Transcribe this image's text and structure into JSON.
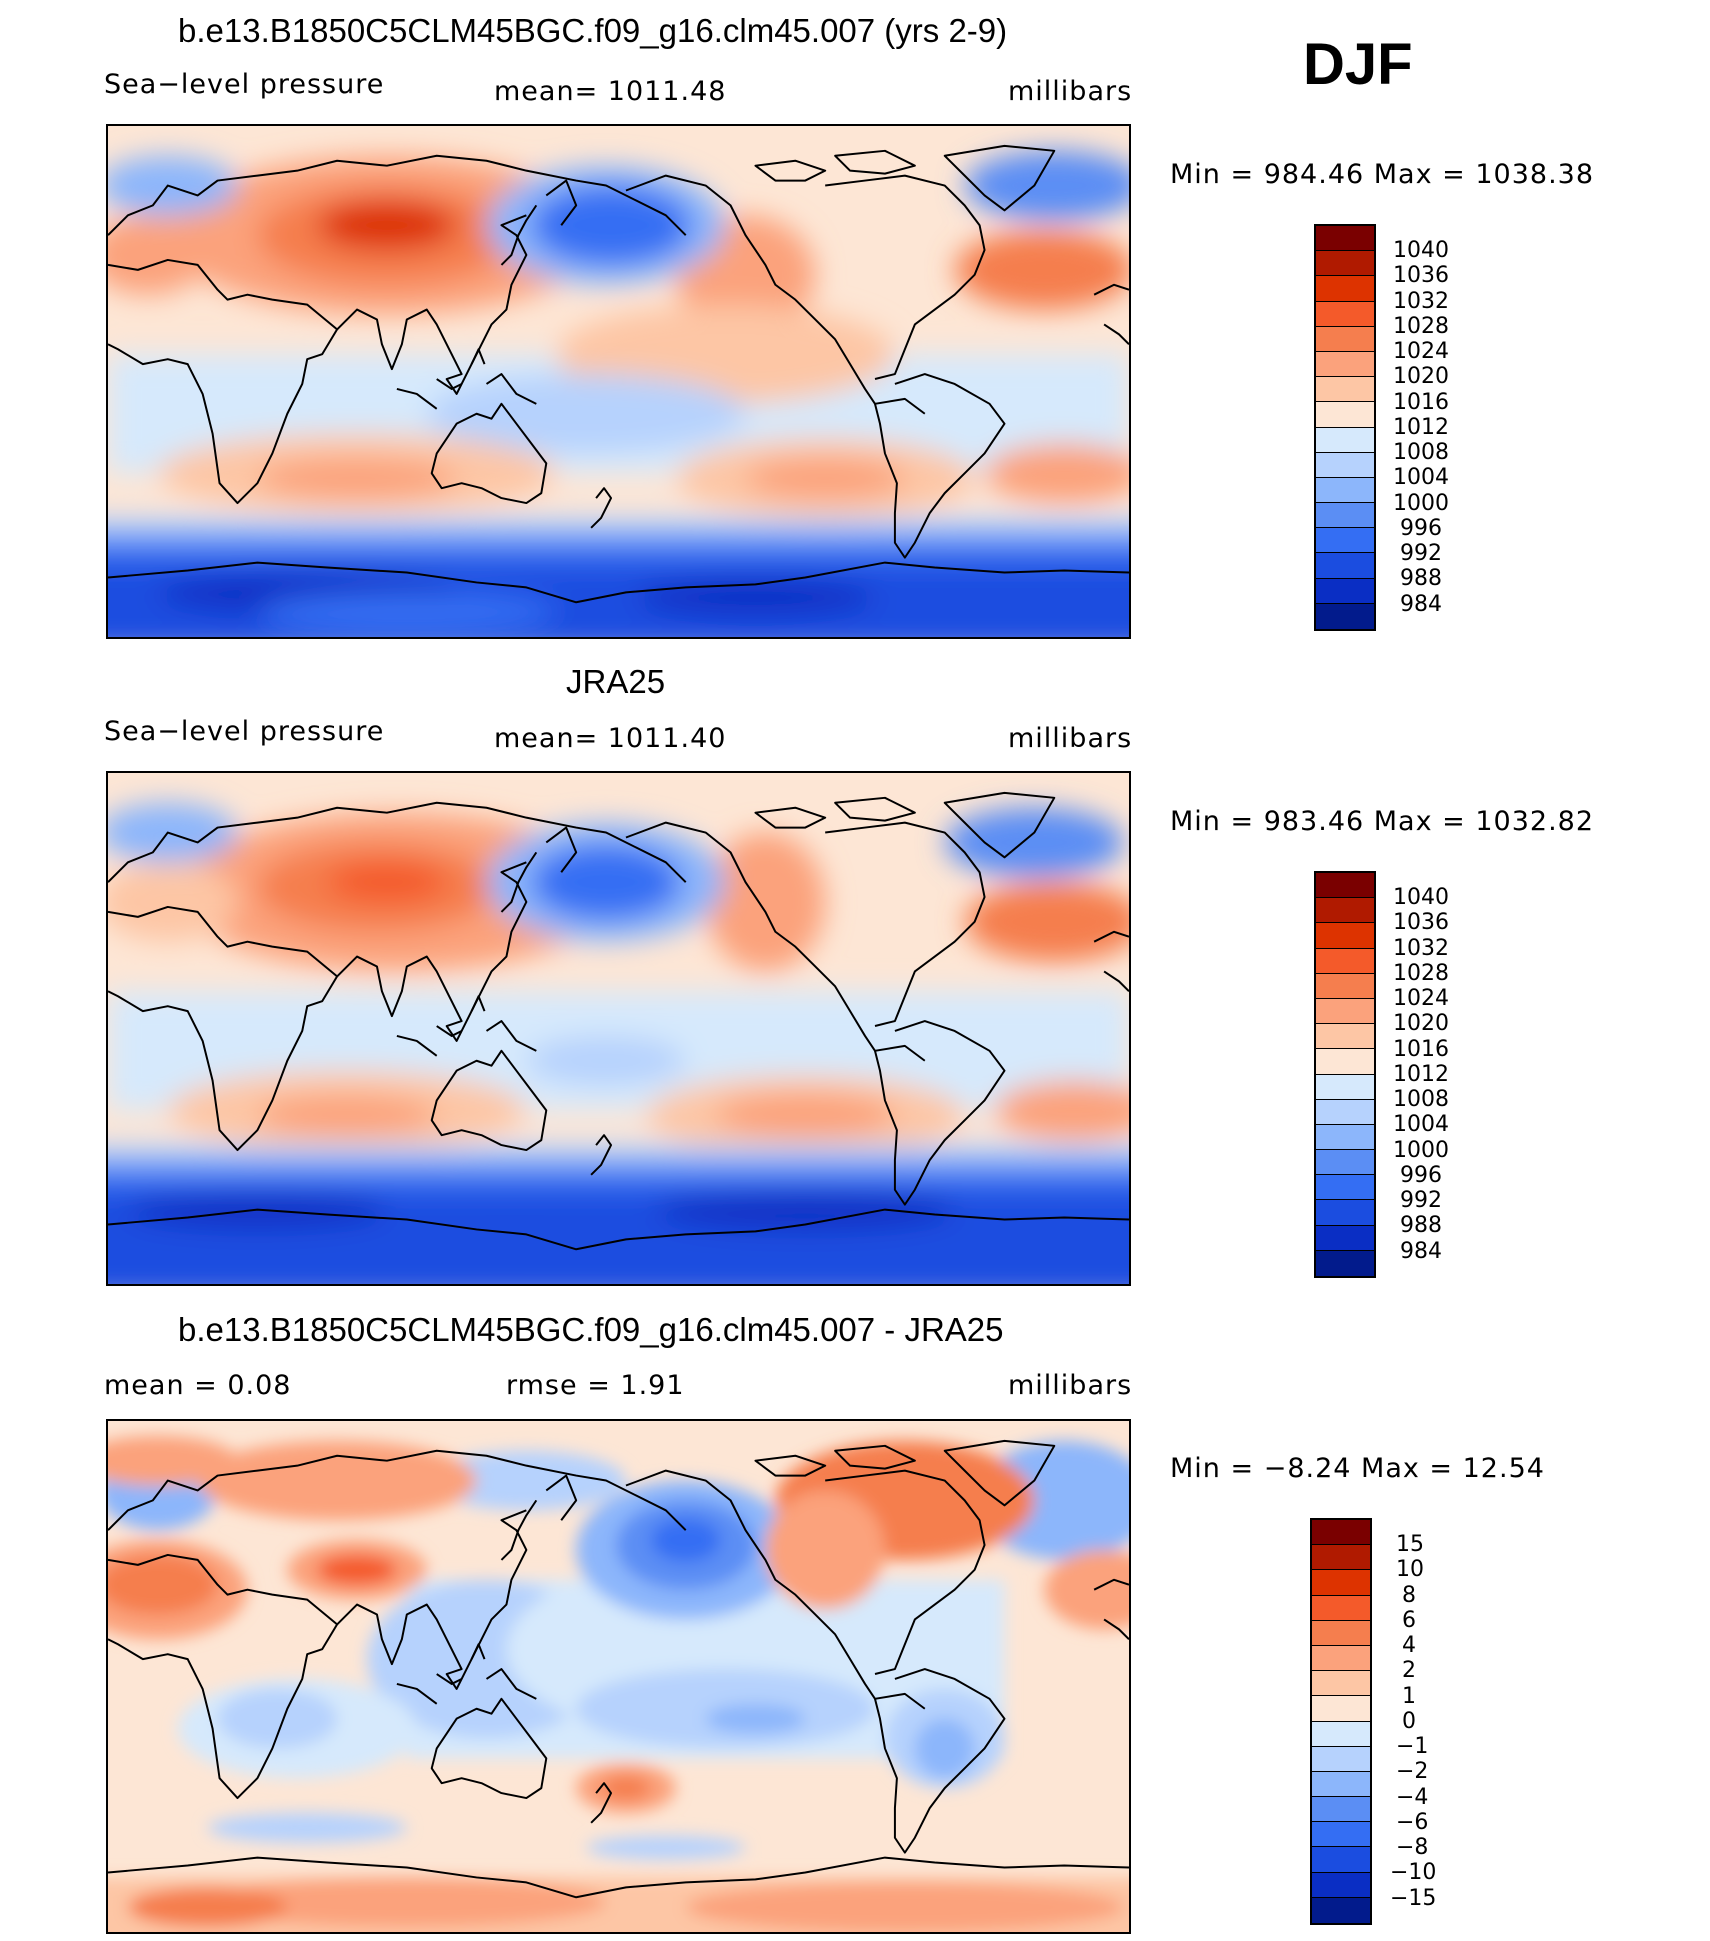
{
  "season": "DJF",
  "panels": [
    {
      "title": "b.e13.B1850C5CLM45BGC.f09_g16.clm45.007 (yrs 2-9)",
      "left_label": "Sea−level pressure",
      "center_label": "mean=  1011.48",
      "units": "millibars",
      "minmax": "Min  =  984.46  Max  =  1038.38",
      "min": 984.46,
      "max": 1038.38,
      "colorbar": {
        "labels": [
          "1040",
          "1036",
          "1032",
          "1028",
          "1024",
          "1020",
          "1016",
          "1012",
          "1008",
          "1004",
          "1000",
          "996",
          "992",
          "988",
          "984"
        ],
        "colors": [
          "#7a0000",
          "#b01a00",
          "#dd3300",
          "#f45a2a",
          "#f57e4e",
          "#fba27c",
          "#fdc6a5",
          "#fde6d5",
          "#d6e9fc",
          "#b6d2fd",
          "#8cb6fb",
          "#5b8ef4",
          "#346ef3",
          "#1b4de0",
          "#0a2ec4",
          "#021b8c"
        ]
      }
    },
    {
      "title": "JRA25",
      "left_label": "Sea−level pressure",
      "center_label": "mean=  1011.40",
      "units": "millibars",
      "minmax": "Min  =  983.46  Max  =  1032.82",
      "min": 983.46,
      "max": 1032.82,
      "colorbar": {
        "labels": [
          "1040",
          "1036",
          "1032",
          "1028",
          "1024",
          "1020",
          "1016",
          "1012",
          "1008",
          "1004",
          "1000",
          "996",
          "992",
          "988",
          "984"
        ],
        "colors": [
          "#7a0000",
          "#b01a00",
          "#dd3300",
          "#f45a2a",
          "#f57e4e",
          "#fba27c",
          "#fdc6a5",
          "#fde6d5",
          "#d6e9fc",
          "#b6d2fd",
          "#8cb6fb",
          "#5b8ef4",
          "#346ef3",
          "#1b4de0",
          "#0a2ec4",
          "#021b8c"
        ]
      }
    },
    {
      "title": "b.e13.B1850C5CLM45BGC.f09_g16.clm45.007 - JRA25",
      "left_label": "mean  =     0.08",
      "center_label": "rmse  =     1.91",
      "units": "millibars",
      "minmax": "Min  =   −8.24  Max  =    12.54",
      "min": -8.24,
      "max": 12.54,
      "colorbar": {
        "labels": [
          "15",
          "10",
          "8",
          "6",
          "4",
          "2",
          "1",
          "0",
          "−1",
          "−2",
          "−4",
          "−6",
          "−8",
          "−10",
          "−15"
        ],
        "colors": [
          "#7a0000",
          "#b01a00",
          "#dd3300",
          "#f45a2a",
          "#f57e4e",
          "#fba27c",
          "#fdc6a5",
          "#fde6d5",
          "#d6e9fc",
          "#b6d2fd",
          "#8cb6fb",
          "#5b8ef4",
          "#346ef3",
          "#1b4de0",
          "#0a2ec4",
          "#021b8c"
        ]
      }
    }
  ]
}
